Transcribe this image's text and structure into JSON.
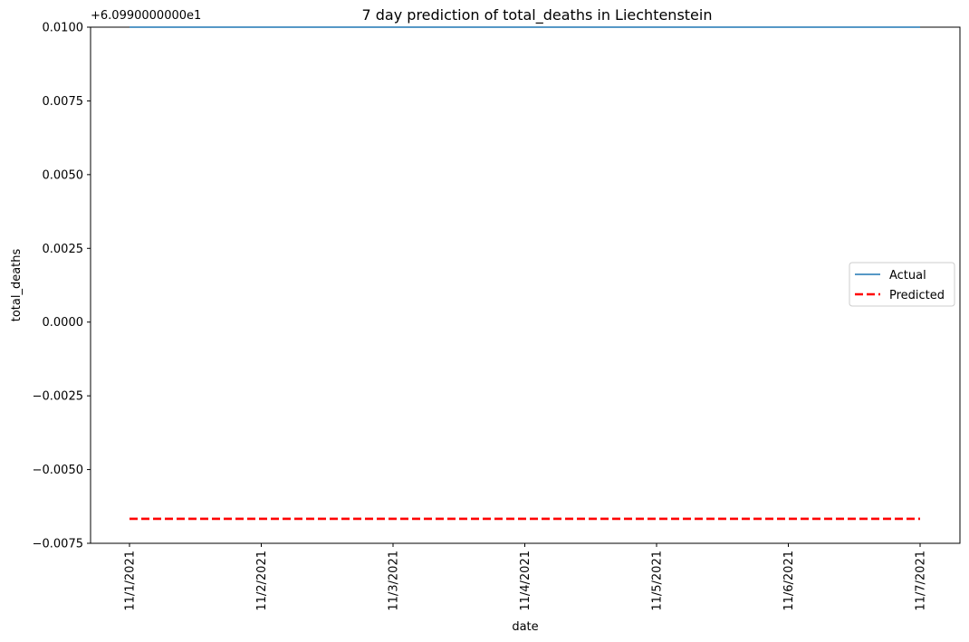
{
  "chart_data": {
    "type": "line",
    "title": "7 day prediction of total_deaths in Liechtenstein",
    "xlabel": "date",
    "ylabel": "total_deaths",
    "offset_label": "+6.0990000000e1",
    "categories": [
      "11/1/2021",
      "11/2/2021",
      "11/3/2021",
      "11/4/2021",
      "11/5/2021",
      "11/6/2021",
      "11/7/2021"
    ],
    "yticks": [
      "−0.0075",
      "−0.0050",
      "−0.0025",
      "0.0000",
      "0.0025",
      "0.0050",
      "0.0075",
      "0.0100"
    ],
    "ylim": [
      -0.0075,
      0.01
    ],
    "legend_position": "center-right",
    "grid": false,
    "series": [
      {
        "name": "Actual",
        "values": [
          0.01,
          0.01,
          0.01,
          0.01,
          0.01,
          0.01,
          0.01
        ],
        "color": "#1f77b4",
        "style": "solid"
      },
      {
        "name": "Predicted",
        "values": [
          -0.00667,
          -0.00667,
          -0.00667,
          -0.00667,
          -0.00667,
          -0.00667,
          -0.00667
        ],
        "color": "#ff0000",
        "style": "dashed"
      }
    ]
  }
}
